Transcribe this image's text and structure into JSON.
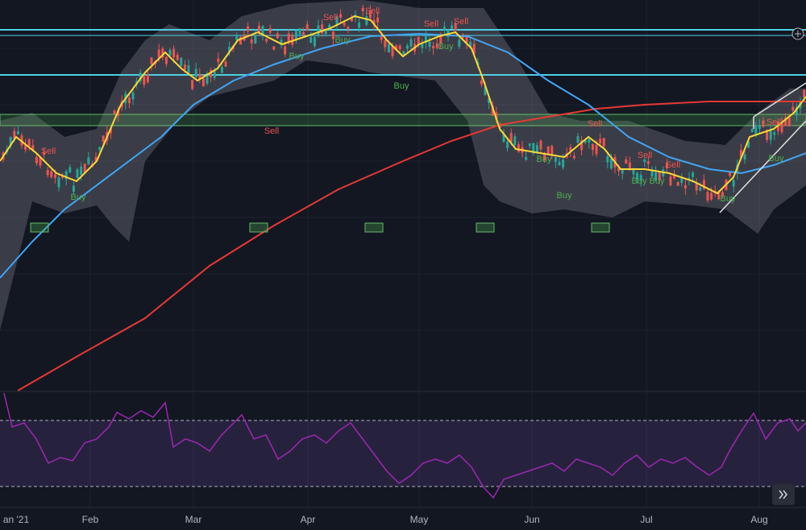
{
  "x_axis": {
    "labels": [
      "an '21",
      "Feb",
      "Mar",
      "Apr",
      "May",
      "Jun",
      "Jul",
      "Aug"
    ]
  },
  "signals": [
    {
      "label": "Sell"
    },
    {
      "label": "Buy"
    },
    {
      "label": "Sell"
    },
    {
      "label": "Sell"
    },
    {
      "label": "Sell"
    },
    {
      "label": "Buy"
    },
    {
      "label": "Buy"
    },
    {
      "label": "Buy"
    },
    {
      "label": "Sell"
    },
    {
      "label": "Sell"
    },
    {
      "label": "Buy"
    },
    {
      "label": "Sell"
    },
    {
      "label": "Buy"
    },
    {
      "label": "Buy"
    },
    {
      "label": "Sell"
    },
    {
      "label": "Sell"
    },
    {
      "label": "Buy"
    },
    {
      "label": "Buy"
    },
    {
      "label": "Sell"
    },
    {
      "label": "Buy"
    },
    {
      "label": "Buy"
    }
  ]
}
